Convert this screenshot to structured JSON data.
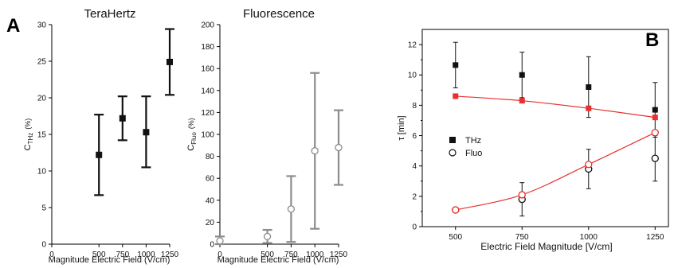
{
  "panel_labels": {
    "a": "A",
    "b": "B"
  },
  "colors": {
    "thz": "#111111",
    "fluo": "#8c8c8c",
    "fit": "#e8312f"
  },
  "chart_data": [
    {
      "id": "terahertz",
      "type": "scatter",
      "title": "TeraHertz",
      "xlabel": "Magnitude Electric Field (V/cm)",
      "ylabel": "C_THz (%)",
      "ylabel_main": "C",
      "ylabel_sub": "THz",
      "ylabel_unit": "(%)",
      "xlim": [
        0,
        1250
      ],
      "ylim": [
        0,
        30
      ],
      "xticks": [
        0,
        500,
        750,
        1000,
        1250
      ],
      "yticks": [
        0,
        5,
        10,
        15,
        20,
        25,
        30
      ],
      "series": [
        {
          "marker": "filled-square",
          "x": [
            500,
            750,
            1000,
            1250
          ],
          "y": [
            12.2,
            17.2,
            15.3,
            24.9
          ],
          "err_low": [
            6.7,
            14.2,
            10.5,
            20.4
          ],
          "err_high": [
            17.7,
            20.2,
            20.2,
            29.4
          ]
        }
      ]
    },
    {
      "id": "fluorescence",
      "type": "scatter",
      "title": "Fluorescence",
      "xlabel": "Magnitude Electric Field (V/cm)",
      "ylabel": "C_Fluo (%)",
      "ylabel_main": "C",
      "ylabel_sub": "Fluo",
      "ylabel_unit": "(%)",
      "xlim": [
        0,
        1250
      ],
      "ylim": [
        0,
        200
      ],
      "xticks": [
        0,
        500,
        750,
        1000,
        1250
      ],
      "yticks": [
        0,
        20,
        40,
        60,
        80,
        100,
        120,
        140,
        160,
        180,
        200
      ],
      "series": [
        {
          "marker": "open-circle",
          "x": [
            0,
            500,
            750,
            1000,
            1250
          ],
          "y": [
            3,
            7,
            32,
            85,
            88
          ],
          "err_low": [
            0,
            1,
            2,
            14,
            54
          ],
          "err_high": [
            7,
            13,
            62,
            156,
            122
          ]
        }
      ]
    },
    {
      "id": "tau",
      "type": "scatter",
      "xlabel": "Electric Field Magnitude [V/cm]",
      "ylabel": "τ [min]",
      "xlim": [
        375,
        1300
      ],
      "ylim": [
        0,
        13
      ],
      "xticks": [
        500,
        750,
        1000,
        1250
      ],
      "yticks": [
        0,
        2,
        4,
        6,
        8,
        10,
        12
      ],
      "legend": {
        "placement": "middle-left"
      },
      "series": [
        {
          "name": "THz",
          "marker": "filled-square",
          "x": [
            500,
            750,
            1000,
            1250
          ],
          "y": [
            10.65,
            10.0,
            9.2,
            7.7
          ],
          "err_low": [
            9.15,
            8.5,
            7.2,
            5.9
          ],
          "err_high": [
            12.15,
            11.5,
            11.2,
            9.5
          ]
        },
        {
          "name": "Fluo",
          "marker": "open-circle",
          "x": [
            500,
            750,
            1000,
            1250
          ],
          "y": [
            1.1,
            1.8,
            3.8,
            4.5
          ],
          "err_low": [
            1.1,
            0.7,
            2.5,
            3.0
          ],
          "err_high": [
            1.1,
            2.9,
            5.1,
            6.0
          ]
        },
        {
          "marker": "red-filled-square",
          "x": [
            500,
            750,
            1000,
            1250
          ],
          "y": [
            8.6,
            8.3,
            7.8,
            7.2
          ],
          "fit_line": true
        },
        {
          "marker": "red-open-circle",
          "x": [
            500,
            750,
            1000,
            1250
          ],
          "y": [
            1.1,
            2.1,
            4.1,
            6.2
          ],
          "fit_line": true
        }
      ]
    }
  ]
}
